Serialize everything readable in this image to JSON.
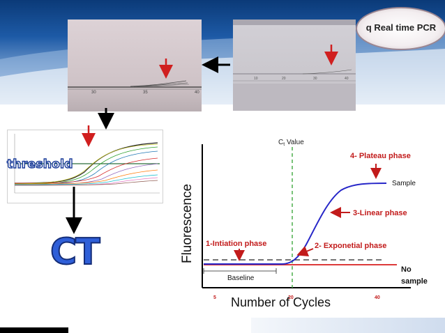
{
  "logo": {
    "text": "q Real time PCR"
  },
  "small_chart": {
    "label": "threshold"
  },
  "ct_label": "CT",
  "main_chart": {
    "ct_value_label": "Ct Value",
    "ct_main": "C",
    "ct_sub": "t",
    "ct_tail": " Value",
    "y_label": "Fluorescence",
    "x_label": "Number of Cycles",
    "x_ticks": [
      "5",
      "20",
      "40"
    ],
    "sample_label": "Sample",
    "no_sample_line1": "No",
    "no_sample_line2": "sample",
    "baseline_label": "Baseline",
    "phases": {
      "p1": "1-Intiation phase",
      "p2": "2- Exponetial phase",
      "p3": "3-Linear phase",
      "p4": "4- Plateau phase"
    }
  },
  "photo1": {
    "ticks": [
      "30",
      "35",
      "40"
    ]
  },
  "photo2": {
    "ticks": [
      "10",
      "20",
      "30",
      "40"
    ]
  },
  "colors": {
    "accent_red": "#d01f1f",
    "curve_blue": "#2626c8",
    "phase_text": "#c21b1b",
    "ct_blue": "#2f5fd8"
  }
}
